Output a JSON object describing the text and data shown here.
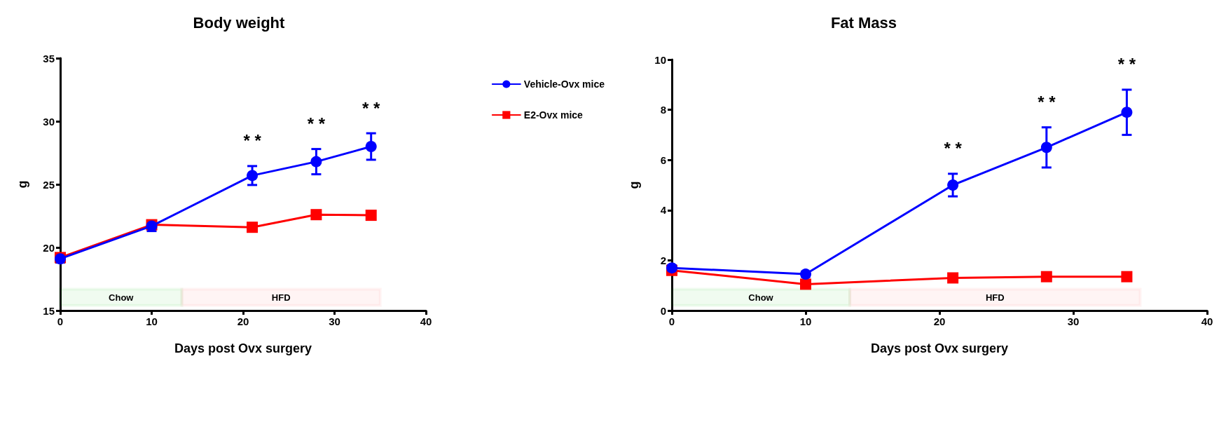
{
  "chart_data": [
    {
      "type": "line",
      "title": "Body weight",
      "xlabel": "Days post Ovx surgery",
      "ylabel": "g",
      "x": [
        0,
        10,
        21,
        28,
        34
      ],
      "series": [
        {
          "name": "Vehicle-Ovx mice",
          "color": "#0000ff",
          "marker": "circle",
          "values": [
            19.1,
            21.7,
            25.7,
            26.8,
            28.0
          ],
          "errors": [
            0.3,
            0.4,
            0.75,
            1.0,
            1.05
          ]
        },
        {
          "name": "E2-Ovx mice",
          "color": "#ff0000",
          "marker": "square",
          "values": [
            19.2,
            21.8,
            21.6,
            22.6,
            22.55
          ]
        }
      ],
      "xlim": [
        0,
        40
      ],
      "xticks": [
        0,
        10,
        20,
        30,
        40
      ],
      "ylim": [
        15,
        35
      ],
      "yticks": [
        15,
        20,
        25,
        30,
        35
      ],
      "grid": false,
      "legend": "right",
      "line_style": "solid",
      "bands": [
        {
          "axis": "x",
          "from": 0,
          "to": 13.3,
          "label": "Chow",
          "color": "#00c000"
        },
        {
          "axis": "x",
          "from": 13.3,
          "to": 35,
          "label": "HFD",
          "color": "#ff4444"
        }
      ],
      "annotations": [
        "* *",
        "* *",
        "* *"
      ]
    },
    {
      "type": "line",
      "title": "Fat Mass",
      "xlabel": "Days post Ovx surgery",
      "ylabel": "g",
      "x": [
        0,
        10,
        21,
        28,
        34
      ],
      "series": [
        {
          "color": "#0000ff",
          "marker": "circle",
          "values": [
            1.7,
            1.45,
            5.0,
            6.5,
            7.9
          ],
          "errors": [
            0.1,
            0.1,
            0.45,
            0.8,
            0.9
          ]
        },
        {
          "color": "#ff0000",
          "marker": "square",
          "values": [
            1.6,
            1.05,
            1.3,
            1.35,
            1.35
          ]
        }
      ],
      "xlim": [
        0,
        40
      ],
      "xticks": [
        0,
        10,
        20,
        30,
        40
      ],
      "ylim": [
        0,
        10
      ],
      "yticks": [
        0,
        2,
        4,
        6,
        8,
        10
      ],
      "grid": false,
      "line_style": "solid",
      "bands": [
        {
          "axis": "x",
          "from": 0,
          "to": 13.3,
          "label": "Chow",
          "color": "#00c000"
        },
        {
          "axis": "x",
          "from": 13.3,
          "to": 35,
          "label": "HFD",
          "color": "#ff4444"
        }
      ],
      "annotations": [
        "* *",
        "* *",
        "* *"
      ]
    }
  ]
}
